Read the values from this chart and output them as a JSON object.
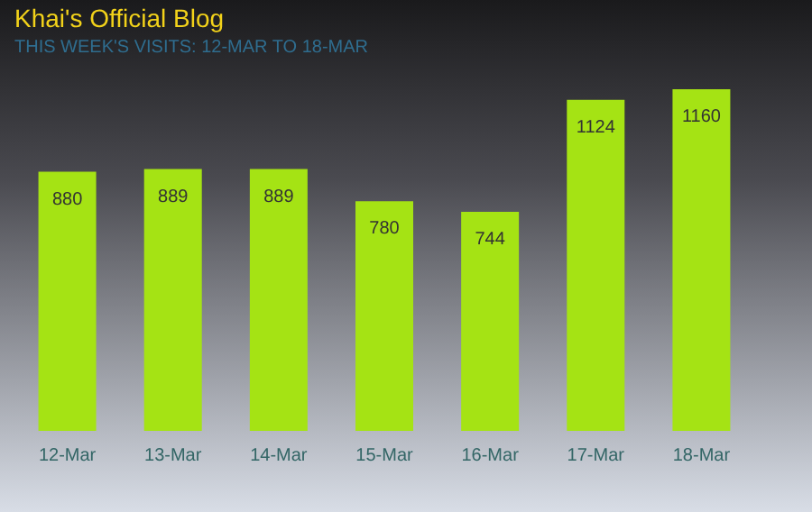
{
  "chart_data": {
    "type": "bar",
    "title": "Khai's Official Blog",
    "subtitle": "THIS WEEK'S VISITS: 12-MAR TO 18-MAR",
    "categories": [
      "12-Mar",
      "13-Mar",
      "14-Mar",
      "15-Mar",
      "16-Mar",
      "17-Mar",
      "18-Mar"
    ],
    "values": [
      880,
      889,
      889,
      780,
      744,
      1124,
      1160
    ],
    "color": "#a5e314",
    "data_labels": true,
    "grid": false
  }
}
